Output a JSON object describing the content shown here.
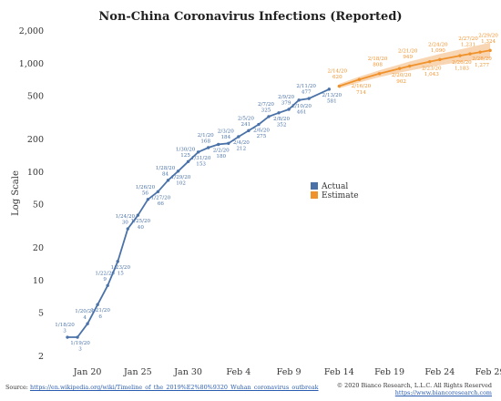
{
  "chart_data": {
    "type": "line",
    "title": "Non-China Coronavirus Infections (Reported)",
    "ylabel": "Log Scale",
    "xlabel": "",
    "y_scale": "log",
    "ylim": [
      2,
      2000
    ],
    "y_ticks": [
      {
        "value": 2,
        "label": "2"
      },
      {
        "value": 5,
        "label": "5"
      },
      {
        "value": 10,
        "label": "10"
      },
      {
        "value": 20,
        "label": "20"
      },
      {
        "value": 50,
        "label": "50"
      },
      {
        "value": 100,
        "label": "100"
      },
      {
        "value": 200,
        "label": "200"
      },
      {
        "value": 500,
        "label": "500"
      },
      {
        "value": 1000,
        "label": "1,000"
      },
      {
        "value": 2000,
        "label": "2,000"
      }
    ],
    "x_ticks": [
      {
        "date": "1/20/20",
        "label": "Jan 20"
      },
      {
        "date": "1/25/20",
        "label": "Jan 25"
      },
      {
        "date": "1/30/20",
        "label": "Jan 30"
      },
      {
        "date": "2/4/20",
        "label": "Feb 4"
      },
      {
        "date": "2/9/20",
        "label": "Feb 9"
      },
      {
        "date": "2/14/20",
        "label": "Feb 14"
      },
      {
        "date": "2/19/20",
        "label": "Feb 19"
      },
      {
        "date": "2/24/20",
        "label": "Feb 24"
      },
      {
        "date": "2/29/20",
        "label": "Feb 29"
      }
    ],
    "grid": false,
    "legend": {
      "position": "center-right",
      "entries": [
        "Actual",
        "Estimate"
      ]
    },
    "series": [
      {
        "name": "Actual",
        "color": "#4a72a8",
        "points": [
          {
            "date": "1/18/20",
            "value": 3,
            "label": "3"
          },
          {
            "date": "1/19/20",
            "value": 3,
            "label": "3"
          },
          {
            "date": "1/20/20",
            "value": 4,
            "label": "4"
          },
          {
            "date": "1/21/20",
            "value": 6,
            "label": "6"
          },
          {
            "date": "1/22/20",
            "value": 9,
            "label": "9"
          },
          {
            "date": "1/23/20",
            "value": 15,
            "label": "15"
          },
          {
            "date": "1/24/20",
            "value": 30,
            "label": "30"
          },
          {
            "date": "1/25/20",
            "value": 40,
            "label": "40"
          },
          {
            "date": "1/26/20",
            "value": 56,
            "label": "56"
          },
          {
            "date": "1/27/20",
            "value": 66,
            "label": "66"
          },
          {
            "date": "1/28/20",
            "value": 84,
            "label": "84"
          },
          {
            "date": "1/29/20",
            "value": 102,
            "label": "102"
          },
          {
            "date": "1/30/20",
            "value": 125,
            "label": "125"
          },
          {
            "date": "1/31/20",
            "value": 153,
            "label": "153"
          },
          {
            "date": "2/1/20",
            "value": 168,
            "label": "168"
          },
          {
            "date": "2/2/20",
            "value": 180,
            "label": "180"
          },
          {
            "date": "2/3/20",
            "value": 184,
            "label": "184"
          },
          {
            "date": "2/4/20",
            "value": 212,
            "label": "212"
          },
          {
            "date": "2/5/20",
            "value": 241,
            "label": "241"
          },
          {
            "date": "2/6/20",
            "value": 275,
            "label": "275"
          },
          {
            "date": "2/7/20",
            "value": 325,
            "label": "325"
          },
          {
            "date": "2/8/20",
            "value": 352,
            "label": "352"
          },
          {
            "date": "2/9/20",
            "value": 379,
            "label": "379"
          },
          {
            "date": "2/10/20",
            "value": 461,
            "label": "461"
          },
          {
            "date": "2/11/20",
            "value": 477,
            "label": "477"
          },
          {
            "date": "2/13/20",
            "value": 581,
            "label": "581"
          }
        ]
      },
      {
        "name": "Estimate",
        "color": "#f0922b",
        "band_color": "#f7c89a",
        "points": [
          {
            "date": "2/14/20",
            "value": 620,
            "label": "620"
          },
          {
            "date": "2/16/20",
            "value": 714,
            "label": "714"
          },
          {
            "date": "2/18/20",
            "value": 808,
            "label": "808"
          },
          {
            "date": "2/20/20",
            "value": 902,
            "label": "902"
          },
          {
            "date": "2/21/20",
            "value": 949,
            "label": "949"
          },
          {
            "date": "2/23/20",
            "value": 1043,
            "label": "1,043"
          },
          {
            "date": "2/24/20",
            "value": 1090,
            "label": "1,090"
          },
          {
            "date": "2/26/20",
            "value": 1183,
            "label": "1,183"
          },
          {
            "date": "2/27/20",
            "value": 1231,
            "label": "1,231"
          },
          {
            "date": "2/28/20",
            "value": 1277,
            "label": "1,277"
          },
          {
            "date": "2/29/20",
            "value": 1324,
            "label": "1,324"
          }
        ]
      }
    ]
  },
  "footer": {
    "source_prefix": "Source: ",
    "source_link": "https://en.wikipedia.org/wiki/Timeline_of_the_2019%E2%80%9320_Wuhan_coronavirus_outbreak",
    "copyright": "© 2020 Bianco Research, L.L.C. All Rights Reserved",
    "website": "https://www.biancoresearch.com"
  }
}
